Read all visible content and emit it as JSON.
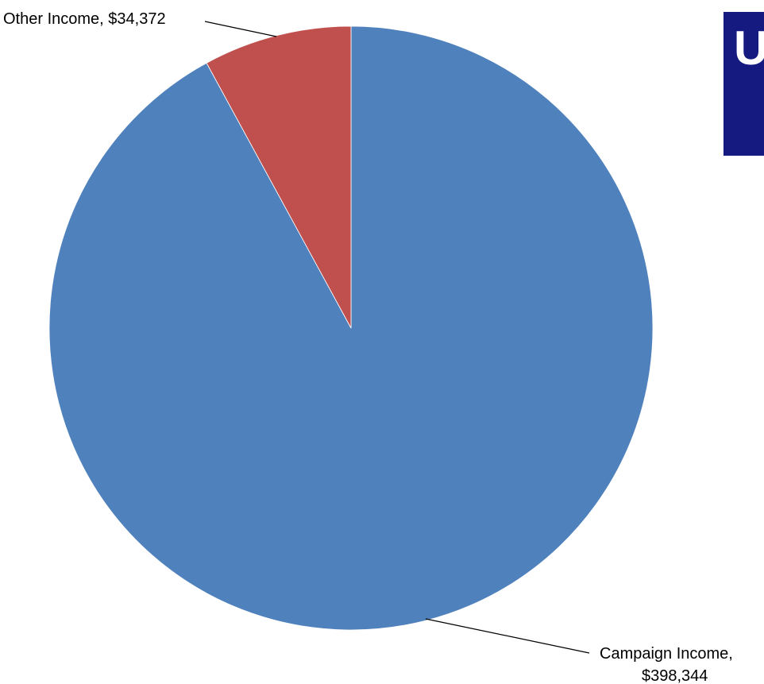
{
  "chart_data": {
    "type": "pie",
    "title": "",
    "slices": [
      {
        "label": "Campaign Income",
        "value": 398344,
        "value_label": "$398,344",
        "color": "#4f81bd"
      },
      {
        "label": "Other Income",
        "value": 34372,
        "value_label": "$34,372",
        "color": "#c0504d"
      }
    ],
    "data_labels": {
      "other": "Other Income, $34,372",
      "campaign_line1": "Campaign Income,",
      "campaign_line2": "$398,344"
    },
    "legend": "none"
  },
  "logo": {
    "letter": "U",
    "background": "#141a80",
    "text_color": "#ffffff"
  }
}
